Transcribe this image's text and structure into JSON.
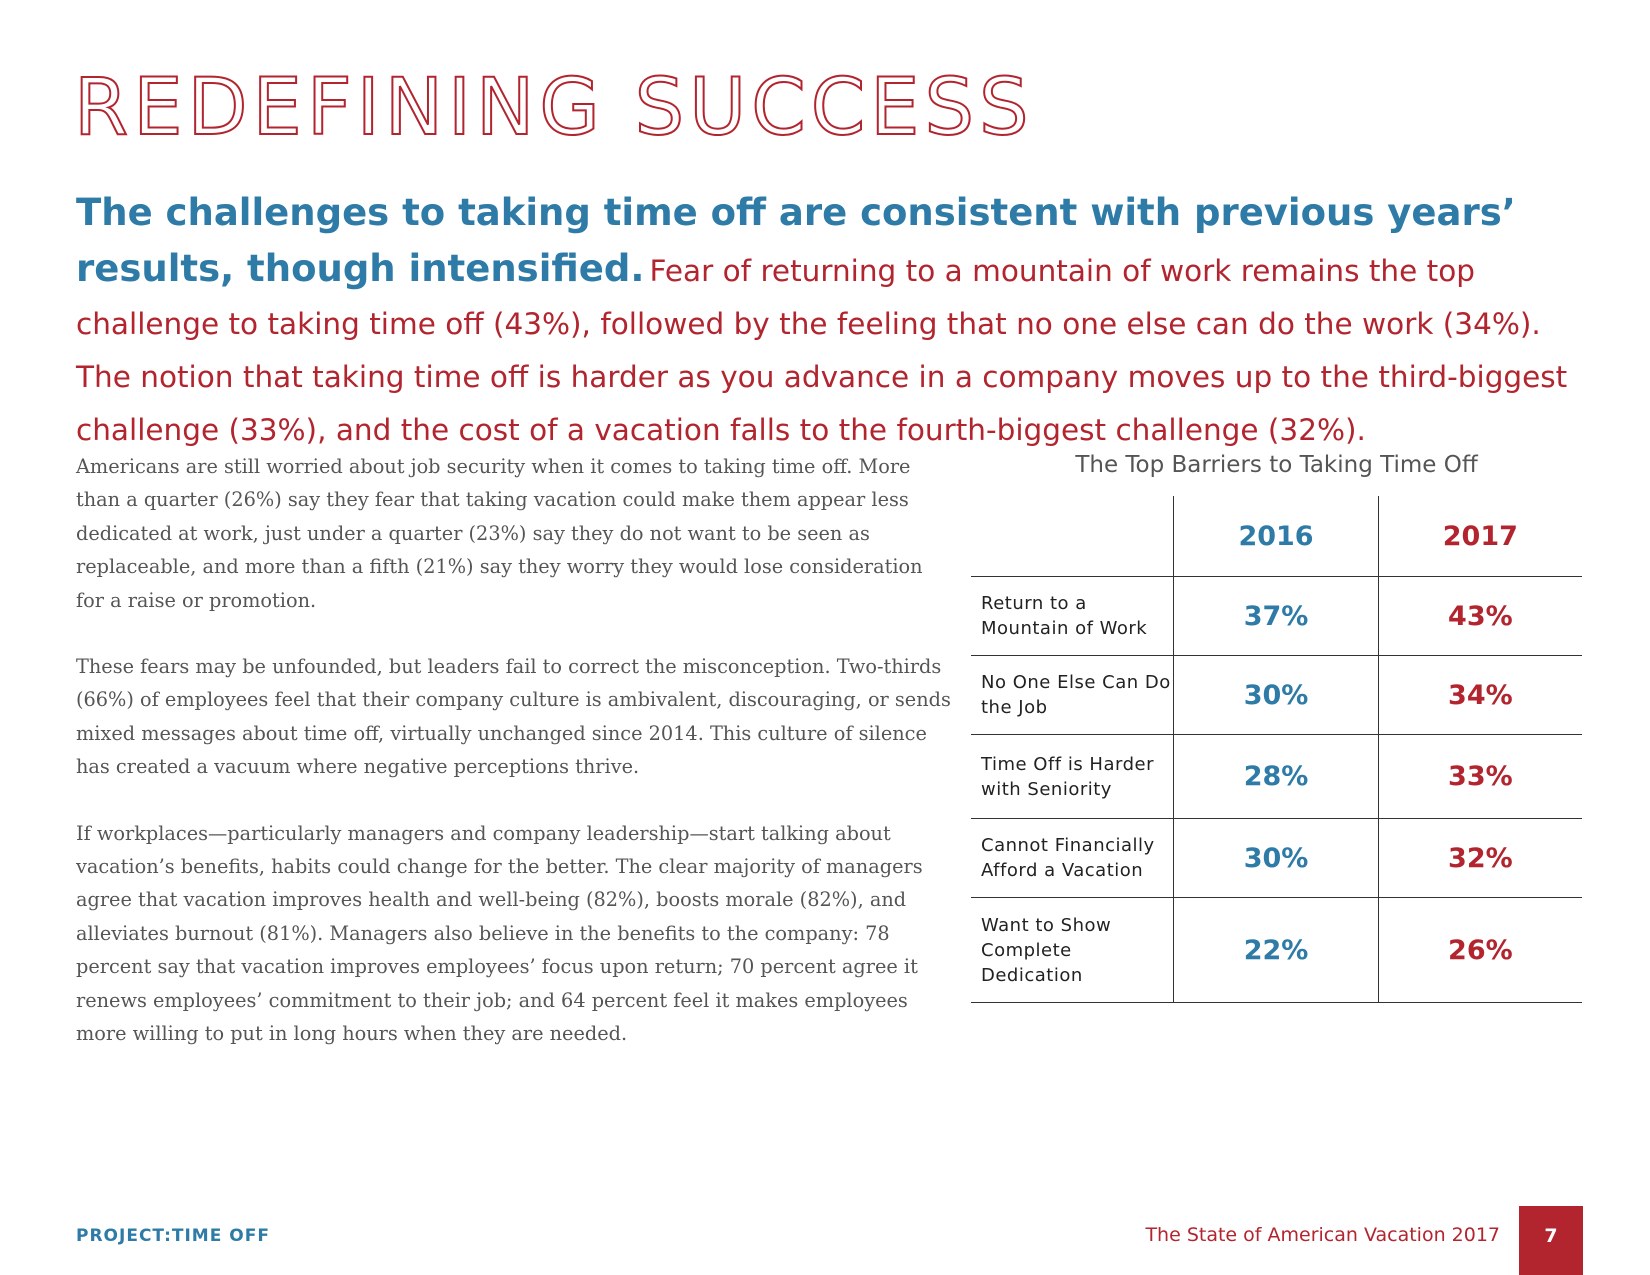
{
  "header": {
    "title": "REDEFINING SUCCESS"
  },
  "lead": {
    "emphasis": "The challenges to taking time off are consistent with previous years’ results, though intensified.",
    "text": "Fear of returning to a mountain of work remains the top challenge to taking time off (43%), followed by the feeling that no one else can do the work (34%). The notion that taking time off is harder as you advance in a company moves up to the third-biggest challenge (33%), and the cost of a vacation falls to the fourth-biggest challenge (32%)."
  },
  "paragraphs": [
    "Americans are still worried about job security when it comes to taking time off. More than a quarter (26%) say they fear that taking vacation could make them appear less dedicated at work, just under a quarter (23%) say they do not want to be seen as replaceable, and more than a fifth (21%) say they worry they would lose consideration for a raise or promotion.",
    "These fears may be unfounded, but leaders fail to correct the misconception. Two-thirds (66%) of employees feel that their company culture is ambivalent, discouraging, or sends mixed messages about time off, virtually unchanged since 2014. This culture of silence has created a vacuum where negative perceptions thrive.",
    "If workplaces—particularly managers and company leadership—start talking about vacation’s benefits, habits could change for the better. The clear majority of managers agree that vacation improves health and well-being (82%), boosts morale (82%), and alleviates burnout (81%). Managers also believe in the benefits to the company: 78 percent say that vacation improves employees’ focus upon return; 70 percent agree it renews employees’ commitment to their job; and 64 percent feel it makes employees more willing to put in long hours when they are needed."
  ],
  "table": {
    "title": "The Top Barriers to Taking Time Off",
    "headers": [
      "2016",
      "2017"
    ],
    "rows": [
      [
        "Return to a Mountain of Work",
        "37%",
        "43%"
      ],
      [
        "No One Else Can Do the Job",
        "30%",
        "34%"
      ],
      [
        "Time Off is Harder with Seniority",
        "28%",
        "33%"
      ],
      [
        "Cannot Financially Afford a Vacation",
        "30%",
        "32%"
      ],
      [
        "Want to Show Complete Dedication",
        "22%",
        "26%"
      ]
    ]
  },
  "footer": {
    "brand": "PROJECT:TIME OFF",
    "report": "The State of American Vacation 2017",
    "page": "7"
  }
}
